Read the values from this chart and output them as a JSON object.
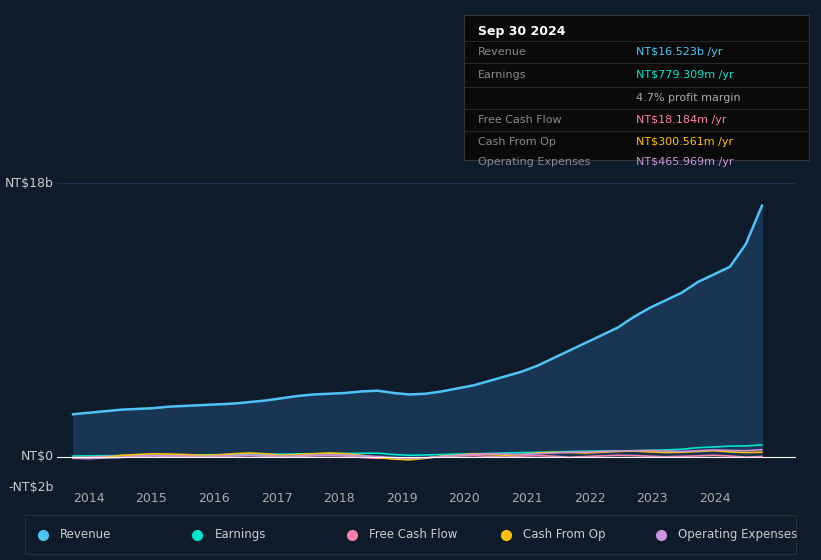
{
  "bg_color": "#0d1b2a",
  "plot_bg_color": "#0d1b2a",
  "title_text": "Sep 30 2024",
  "ylabel_top": "NT$18b",
  "ylabel_zero": "NT$0",
  "ylabel_neg": "-NT$2b",
  "ylim": [
    -2000000000,
    19000000000
  ],
  "xlim": [
    2013.5,
    2025.3
  ],
  "xticks": [
    2014,
    2015,
    2016,
    2017,
    2018,
    2019,
    2020,
    2021,
    2022,
    2023,
    2024
  ],
  "grid_color": "#1e3050",
  "zero_line_color": "#ffffff",
  "line_color_revenue": "#4fc3f7",
  "fill_color_revenue": "#1a3a5c",
  "earnings_color": "#00e5cc",
  "fcf_color": "#ff80ab",
  "cashop_color": "#ffc107",
  "opex_color": "#ce93d8",
  "legend_items": [
    {
      "label": "Revenue",
      "color": "#4fc3f7"
    },
    {
      "label": "Earnings",
      "color": "#00e5cc"
    },
    {
      "label": "Free Cash Flow",
      "color": "#ff80ab"
    },
    {
      "label": "Cash From Op",
      "color": "#ffc107"
    },
    {
      "label": "Operating Expenses",
      "color": "#ce93d8"
    }
  ],
  "box_bg": "#0a0a0a",
  "box_border": "#333333",
  "table_rows": [
    {
      "label": "Revenue",
      "value": "NT$16.523b /yr",
      "value_color": "#4fc3f7",
      "label_color": "#888888"
    },
    {
      "label": "Earnings",
      "value": "NT$779.309m /yr",
      "value_color": "#00e5cc",
      "label_color": "#888888"
    },
    {
      "label": "",
      "value": "4.7% profit margin",
      "value_color": "#aaaaaa",
      "label_color": "#888888"
    },
    {
      "label": "Free Cash Flow",
      "value": "NT$18.184m /yr",
      "value_color": "#ff80ab",
      "label_color": "#888888"
    },
    {
      "label": "Cash From Op",
      "value": "NT$300.561m /yr",
      "value_color": "#ffc107",
      "label_color": "#888888"
    },
    {
      "label": "Operating Expenses",
      "value": "NT$465.969m /yr",
      "value_color": "#ce93d8",
      "label_color": "#888888"
    }
  ]
}
